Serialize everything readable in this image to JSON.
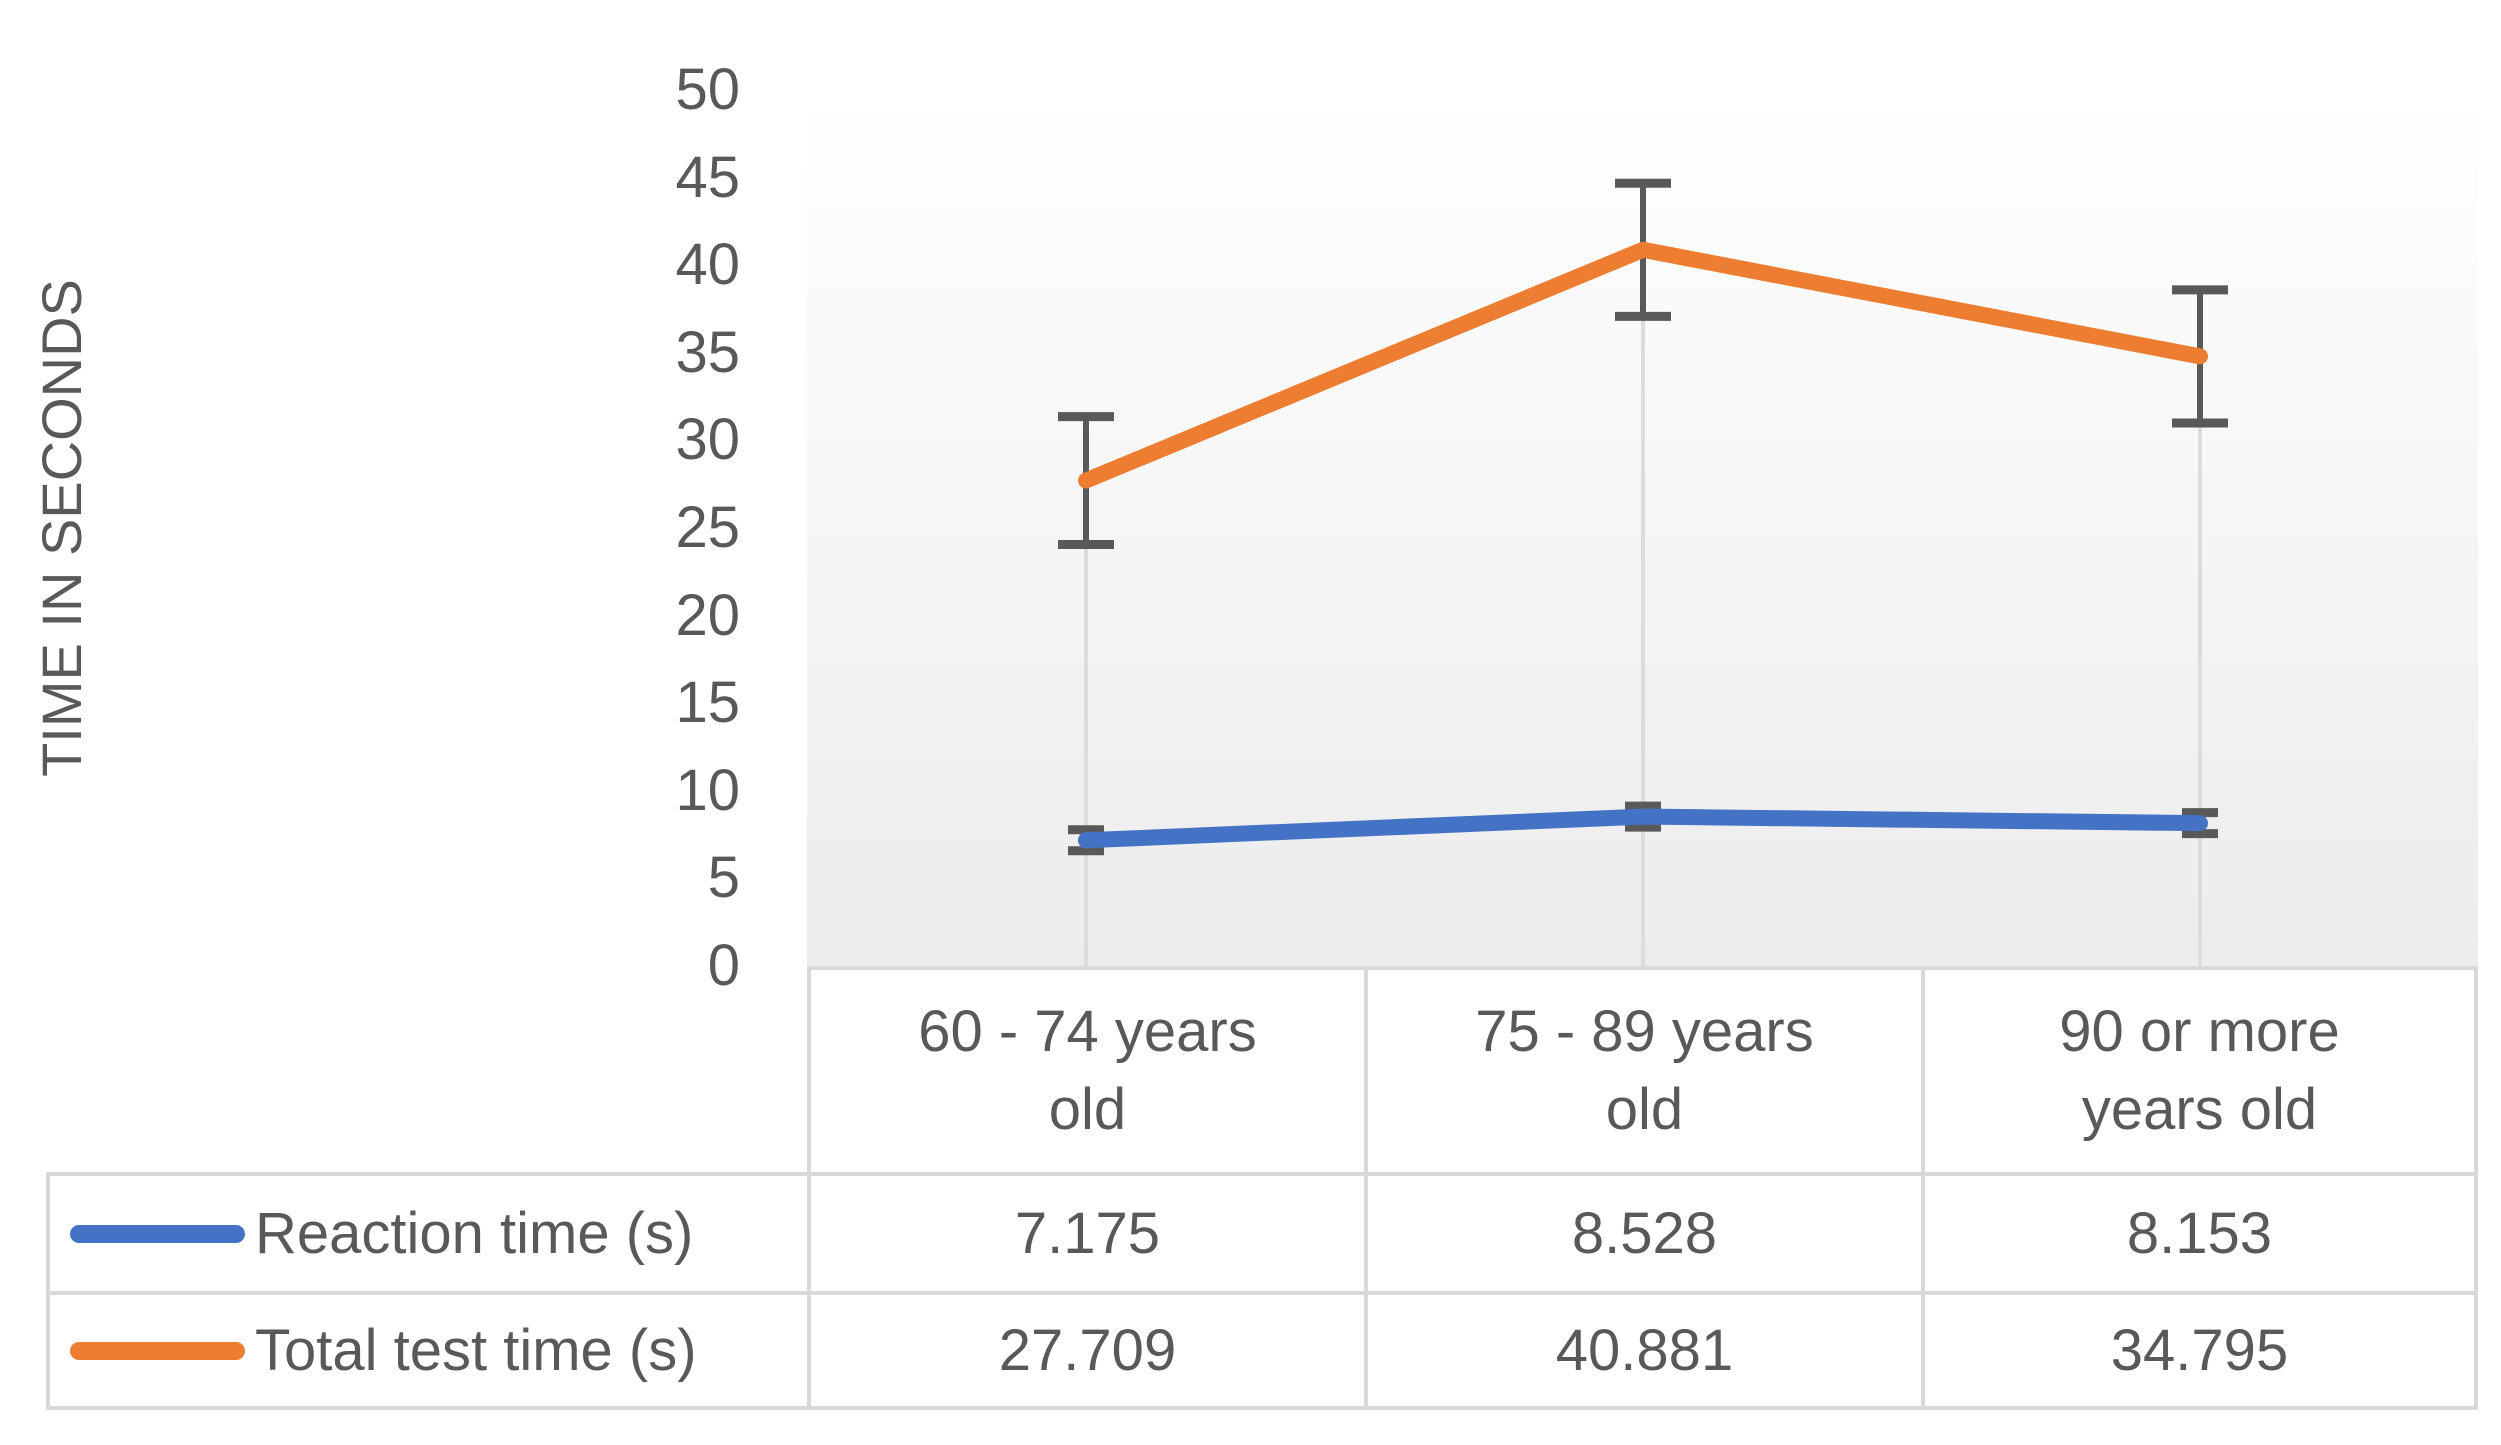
{
  "chart_data": {
    "type": "line",
    "categories": [
      "60 - 74 years old",
      "75 - 89 years old",
      "90 or more years old"
    ],
    "series": [
      {
        "name": "Reaction time (s)",
        "color": "#4472C4",
        "values": [
          7.175,
          8.528,
          8.153
        ],
        "error_bars": [
          0.6,
          0.6,
          0.6
        ],
        "drop_lines": false
      },
      {
        "name": "Total test time (s)",
        "color": "#ED7D31",
        "values": [
          27.709,
          40.881,
          34.795
        ],
        "error_bars": [
          3.65,
          3.8,
          3.8
        ],
        "drop_lines": true
      }
    ],
    "ylabel": "TIME IN SECONDS",
    "ylim": [
      0,
      50
    ],
    "ytick_step": 5,
    "xlabel": "",
    "grid": "off",
    "legend_position": "table-left",
    "error_bar_color": "#595959",
    "drop_line_color": "#DCDCDC",
    "plot_bg_top": "#FFFFFF",
    "plot_bg_bottom": "#ECECEC",
    "table_border_color": "#D9D9D9",
    "text_color": "#595959"
  },
  "table": {
    "headers": [
      "60 - 74 years\nold",
      "75 - 89 years\nold",
      "90 or more\nyears old"
    ]
  }
}
